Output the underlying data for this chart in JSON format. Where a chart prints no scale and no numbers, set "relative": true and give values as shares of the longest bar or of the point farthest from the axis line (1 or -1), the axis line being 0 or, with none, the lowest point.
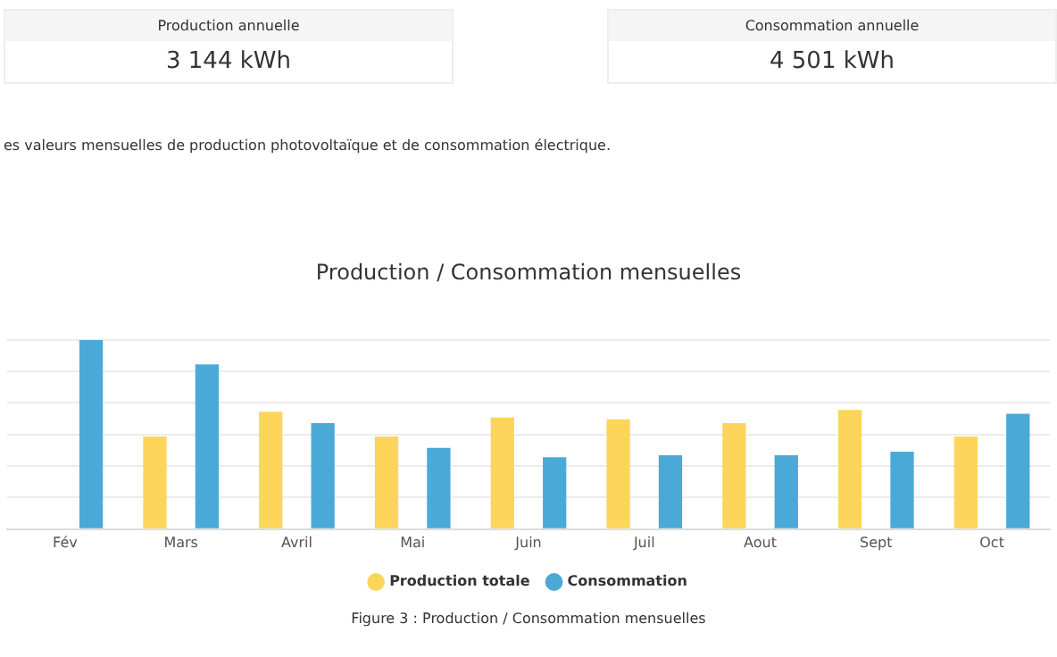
{
  "chart_data": {
    "type": "bar",
    "title": "Production / Consommation mensuelles",
    "categories": [
      "Fév",
      "Mars",
      "Avril",
      "Mai",
      "Juin",
      "Juil",
      "Aout",
      "Sept",
      "Oct"
    ],
    "relative": true,
    "grid": "y",
    "legend": "bottom",
    "series": [
      {
        "name": "Production totale",
        "color": "#fdd55a",
        "values": [
          null,
          0.49,
          0.62,
          0.49,
          0.59,
          0.58,
          0.56,
          0.63,
          0.49
        ]
      },
      {
        "name": "Consommation",
        "color": "#4aa9d6",
        "values": [
          1,
          0.87,
          0.56,
          0.43,
          0.38,
          0.39,
          0.39,
          0.41,
          0.61
        ]
      }
    ],
    "annotations": [
      "Production annuelle",
      "3 144 kWh",
      "Consommation annuelle",
      "4 501 kWh",
      "es valeurs mensuelles de production photovoltaïque et de consommation électrique.",
      "Figure 3 : Production / Consommation mensuelles"
    ]
  }
}
